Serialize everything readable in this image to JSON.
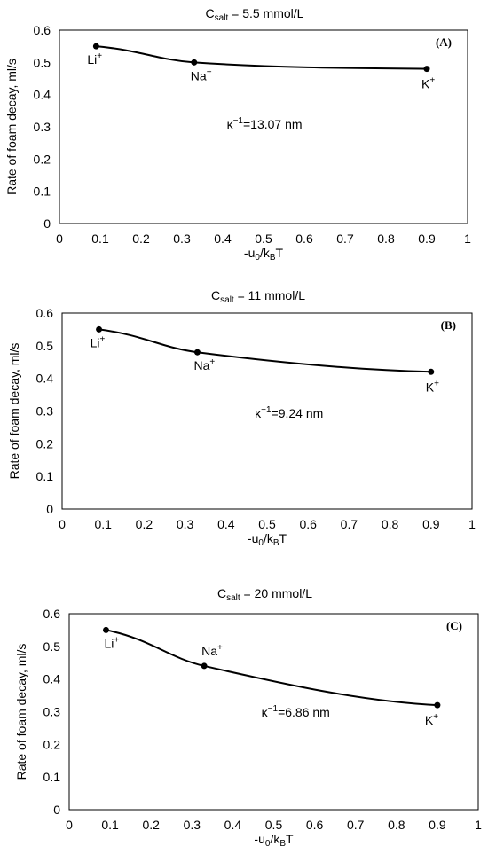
{
  "chart_data": [
    {
      "type": "line",
      "title": "C",
      "title_sub": "salt",
      "title_rest": " = 5.5 mmol/L",
      "panel": "(A)",
      "ylabel": "Rate of foam decay, ml/s",
      "xlabel": {
        "pre": "-u",
        "sub1": "0",
        "mid": "/k",
        "sub2": "B",
        "post": "T"
      },
      "xlim": [
        0,
        1
      ],
      "ylim": [
        0,
        0.6
      ],
      "xticks": [
        "0",
        "0.1",
        "0.2",
        "0.3",
        "0.4",
        "0.5",
        "0.6",
        "0.7",
        "0.8",
        "0.9",
        "1"
      ],
      "yticks": [
        "0",
        "0.1",
        "0.2",
        "0.3",
        "0.4",
        "0.5",
        "0.6"
      ],
      "x": [
        0.09,
        0.33,
        0.9
      ],
      "y": [
        0.55,
        0.5,
        0.48
      ],
      "point_labels": [
        {
          "base": "Li",
          "sup": "+"
        },
        {
          "base": "Na",
          "sup": "+"
        },
        {
          "base": "K",
          "sup": "+"
        }
      ],
      "annotation": {
        "base": "κ",
        "sup": "−1",
        "rest": "=13.07 nm"
      }
    },
    {
      "type": "line",
      "title": "C",
      "title_sub": "salt",
      "title_rest": " = 11 mmol/L",
      "panel": "(B)",
      "ylabel": "Rate of foam decay, ml/s",
      "xlabel": {
        "pre": "-u",
        "sub1": "0",
        "mid": "/k",
        "sub2": "B",
        "post": "T"
      },
      "xlim": [
        0,
        1
      ],
      "ylim": [
        0,
        0.6
      ],
      "xticks": [
        "0",
        "0.1",
        "0.2",
        "0.3",
        "0.4",
        "0.5",
        "0.6",
        "0.7",
        "0.8",
        "0.9",
        "1"
      ],
      "yticks": [
        "0",
        "0.1",
        "0.2",
        "0.3",
        "0.4",
        "0.5",
        "0.6"
      ],
      "x": [
        0.09,
        0.33,
        0.9
      ],
      "y": [
        0.55,
        0.48,
        0.42
      ],
      "point_labels": [
        {
          "base": "Li",
          "sup": "+"
        },
        {
          "base": "Na",
          "sup": "+"
        },
        {
          "base": "K",
          "sup": "+"
        }
      ],
      "annotation": {
        "base": "κ",
        "sup": "−1",
        "rest": "=9.24 nm"
      }
    },
    {
      "type": "line",
      "title": "C",
      "title_sub": "salt",
      "title_rest": " = 20 mmol/L",
      "panel": "(C)",
      "ylabel": "Rate of foam decay, ml/s",
      "xlabel": {
        "pre": "-u",
        "sub1": "0",
        "mid": "/k",
        "sub2": "B",
        "post": "T"
      },
      "xlim": [
        0,
        1
      ],
      "ylim": [
        0,
        0.6
      ],
      "xticks": [
        "0",
        "0.1",
        "0.2",
        "0.3",
        "0.4",
        "0.5",
        "0.6",
        "0.7",
        "0.8",
        "0.9",
        "1"
      ],
      "yticks": [
        "0",
        "0.1",
        "0.2",
        "0.3",
        "0.4",
        "0.5",
        "0.6"
      ],
      "x": [
        0.09,
        0.33,
        0.9
      ],
      "y": [
        0.55,
        0.44,
        0.32
      ],
      "point_labels": [
        {
          "base": "Li",
          "sup": "+"
        },
        {
          "base": "Na",
          "sup": "+"
        },
        {
          "base": "K",
          "sup": "+"
        }
      ],
      "annotation": {
        "base": "κ",
        "sup": "−1",
        "rest": "=6.86 nm"
      }
    }
  ]
}
